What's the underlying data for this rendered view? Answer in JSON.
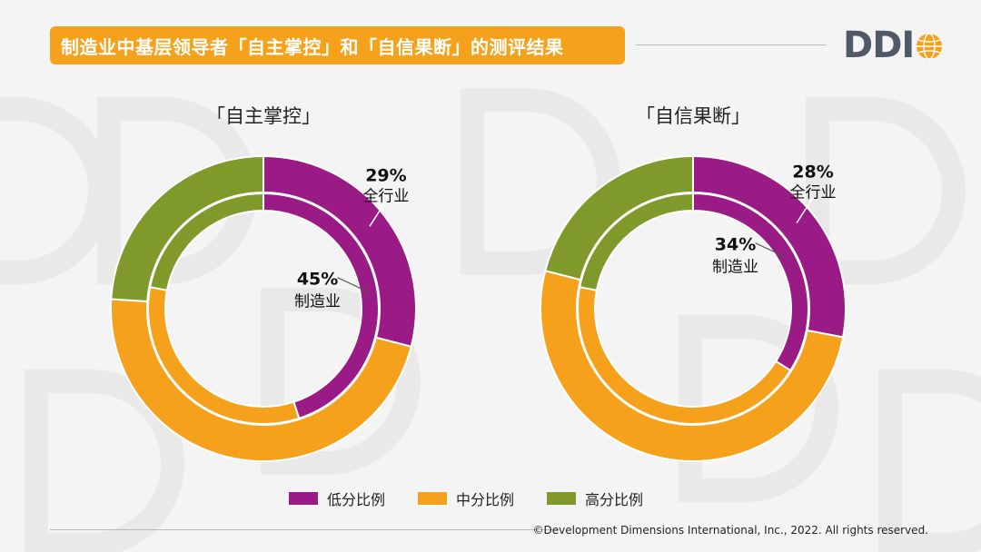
{
  "header": {
    "title": "制造业中基层领导者「自主掌控」和「自信果断」的测评结果",
    "logo_text": "DDI",
    "title_bar_color": "#f5a11c"
  },
  "chart_data": [
    {
      "type": "donut",
      "title": "「自主掌控」",
      "categories": [
        "低分比例",
        "中分比例",
        "高分比例"
      ],
      "series": [
        {
          "name": "全行业",
          "values": [
            29,
            47,
            24
          ]
        },
        {
          "name": "制造业",
          "values": [
            45,
            33,
            22
          ]
        }
      ],
      "annotations": [
        {
          "series": "全行业",
          "value": "29%",
          "label": "全行业"
        },
        {
          "series": "制造业",
          "value": "45%",
          "label": "制造业"
        }
      ]
    },
    {
      "type": "donut",
      "title": "「自信果断」",
      "categories": [
        "低分比例",
        "中分比例",
        "高分比例"
      ],
      "series": [
        {
          "name": "全行业",
          "values": [
            28,
            51,
            21
          ]
        },
        {
          "name": "制造业",
          "values": [
            34,
            44,
            22
          ]
        }
      ],
      "annotations": [
        {
          "series": "全行业",
          "value": "28%",
          "label": "全行业"
        },
        {
          "series": "制造业",
          "value": "34%",
          "label": "制造业"
        }
      ]
    }
  ],
  "legend": {
    "items": [
      {
        "label": "低分比例",
        "color": "#9b1b86"
      },
      {
        "label": "中分比例",
        "color": "#f5a11c"
      },
      {
        "label": "高分比例",
        "color": "#7f9a2b"
      }
    ]
  },
  "footer": {
    "copyright": "©Development Dimensions International, Inc., 2022. All rights reserved."
  }
}
